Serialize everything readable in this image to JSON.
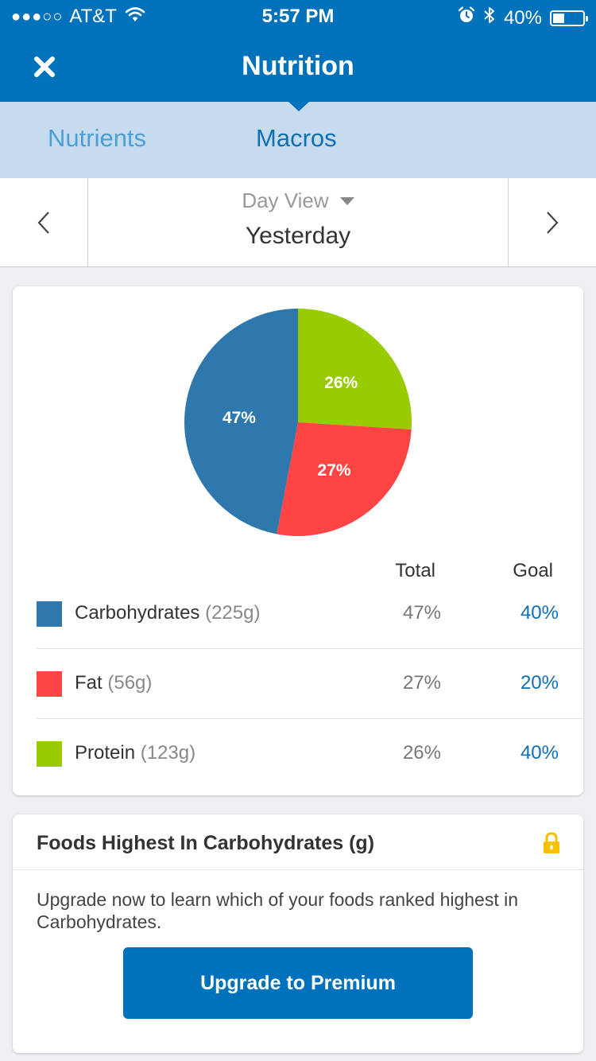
{
  "status_bar": {
    "signal_dots": "●●●○○",
    "carrier": "AT&T",
    "time": "5:57 PM",
    "battery_text": "40%",
    "battery_level": 0.4,
    "icons": [
      "wifi-icon",
      "alarm-icon",
      "bluetooth-icon",
      "battery-icon"
    ]
  },
  "header": {
    "title": "Nutrition",
    "close_icon": "close-icon"
  },
  "tabs": [
    {
      "label": "Nutrients",
      "active": false
    },
    {
      "label": "Macros",
      "active": true
    }
  ],
  "date_nav": {
    "view_mode": "Day View",
    "date_label": "Yesterday",
    "prev_icon": "chevron-left-icon",
    "next_icon": "chevron-right-icon"
  },
  "chart_data": {
    "type": "pie",
    "slices": [
      {
        "name": "Protein",
        "value": 26,
        "label": "26%",
        "color": "#99cc00"
      },
      {
        "name": "Fat",
        "value": 27,
        "label": "27%",
        "color": "#ff4444"
      },
      {
        "name": "Carbohydrates",
        "value": 47,
        "label": "47%",
        "color": "#2f78ae"
      }
    ]
  },
  "macros_table": {
    "col_total": "Total",
    "col_goal": "Goal",
    "rows": [
      {
        "name": "Carbohydrates",
        "amount": "(225g)",
        "total": "47%",
        "goal": "40%",
        "color": "#2f78ae"
      },
      {
        "name": "Fat",
        "amount": "(56g)",
        "total": "27%",
        "goal": "20%",
        "color": "#ff4444"
      },
      {
        "name": "Protein",
        "amount": "(123g)",
        "total": "26%",
        "goal": "40%",
        "color": "#99cc00"
      }
    ]
  },
  "upgrade_card": {
    "title": "Foods Highest In Carbohydrates (g)",
    "lock_icon": "lock-icon",
    "text": "Upgrade now to learn which of your foods ranked highest in Carbohydrates.",
    "button_label": "Upgrade to Premium"
  },
  "colors": {
    "brand": "#0072bc",
    "tab_bar": "#c6dcee",
    "goal_text": "#0f6fb4",
    "lock": "#f6c000"
  }
}
